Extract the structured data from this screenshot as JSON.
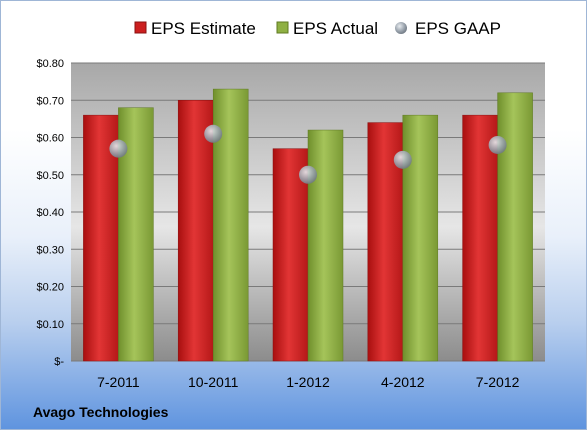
{
  "chart_data": {
    "type": "bar",
    "categories": [
      "7-2011",
      "10-2011",
      "1-2012",
      "4-2012",
      "7-2012"
    ],
    "series": [
      {
        "name": "EPS Estimate",
        "kind": "bar",
        "color": "#cc1f1f",
        "values": [
          0.66,
          0.7,
          0.57,
          0.64,
          0.66
        ]
      },
      {
        "name": "EPS Actual",
        "kind": "bar",
        "color": "#8fb043",
        "values": [
          0.68,
          0.73,
          0.62,
          0.66,
          0.72
        ]
      },
      {
        "name": "EPS GAAP",
        "kind": "marker",
        "color": "#9aa3ad",
        "values": [
          0.57,
          0.61,
          0.5,
          0.54,
          0.58
        ]
      }
    ],
    "y_ticks": [
      "$-",
      "$0.10",
      "$0.20",
      "$0.30",
      "$0.40",
      "$0.50",
      "$0.60",
      "$0.70",
      "$0.80"
    ],
    "ylim": [
      0,
      0.8
    ],
    "grid": true,
    "legend_position": "top",
    "footer": "Avago Technologies"
  }
}
